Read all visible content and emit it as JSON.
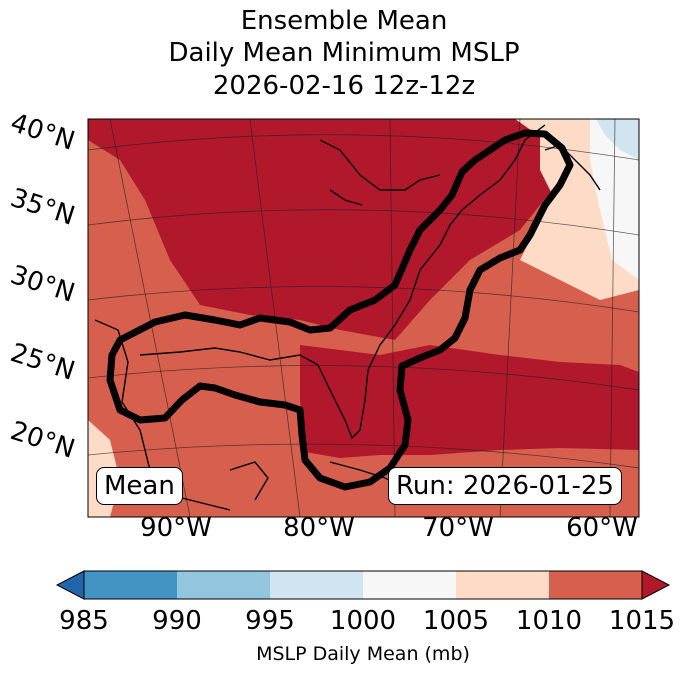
{
  "chart_data": {
    "type": "heatmap",
    "title_lines": [
      "Ensemble Mean",
      "Daily Mean Minimum MSLP",
      "2026-02-16 12z-12z"
    ],
    "latitude_labels": [
      "40°N",
      "35°N",
      "30°N",
      "25°N",
      "20°N"
    ],
    "longitude_labels": [
      "90°W",
      "80°W",
      "70°W",
      "60°W"
    ],
    "badges": {
      "left": "Mean",
      "right": "Run: 2026-01-25"
    },
    "colorbar": {
      "label": "MSLP Daily Mean (mb)",
      "ticks": [
        "985",
        "990",
        "995",
        "1000",
        "1005",
        "1010",
        "1015"
      ],
      "bins": [
        {
          "range": [
            985,
            990
          ],
          "color": "#4393c3"
        },
        {
          "range": [
            990,
            995
          ],
          "color": "#92c5de"
        },
        {
          "range": [
            995,
            1000
          ],
          "color": "#d1e5f0"
        },
        {
          "range": [
            1000,
            1005
          ],
          "color": "#f7f7f7"
        },
        {
          "range": [
            1005,
            1010
          ],
          "color": "#fddbc7"
        },
        {
          "range": [
            1010,
            1015
          ],
          "color": "#d6604d"
        }
      ],
      "extend_low_color": "#2166ac",
      "extend_high_color": "#b2182b",
      "extend": "both"
    },
    "field_colors": {
      "above_1015": "#b2182b",
      "c1010_1015": "#d6604d",
      "c1005_1010": "#fddbc7",
      "c1000_1005": "#f7f7f7",
      "c995_1000": "#d1e5f0",
      "contour": "#000000"
    }
  }
}
